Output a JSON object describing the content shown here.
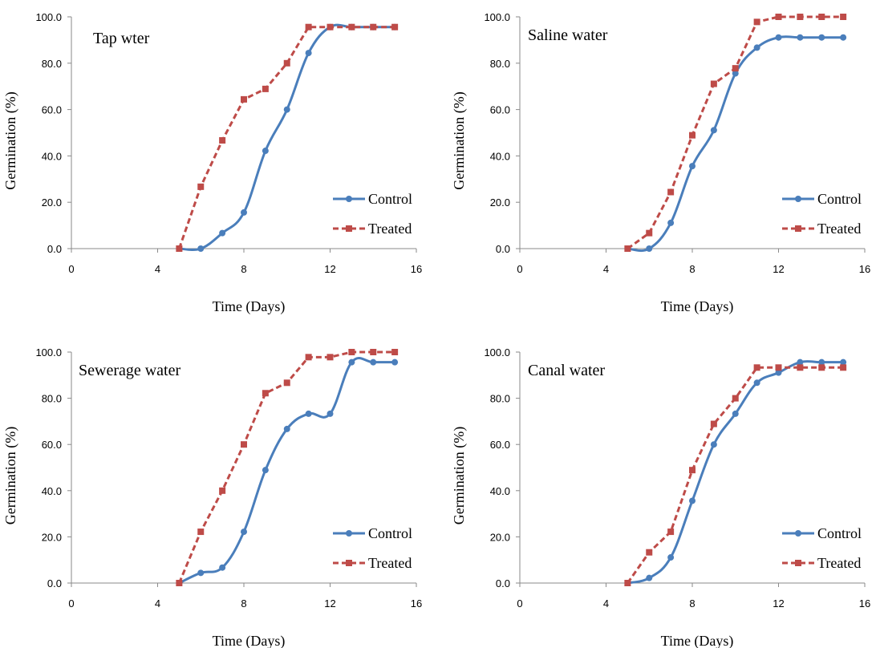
{
  "chart_data": [
    {
      "type": "line",
      "title": "Tap wter",
      "xlabel": "Time (Days)",
      "ylabel": "Germination (%)",
      "xlim": [
        0,
        16
      ],
      "ylim": [
        0,
        100
      ],
      "xticks": [
        "0",
        "4",
        "8",
        "12",
        "16"
      ],
      "yticks": [
        "0.0",
        "20.0",
        "40.0",
        "60.0",
        "80.0",
        "100.0"
      ],
      "legend_position": "bottom-right",
      "x": [
        5,
        6,
        7,
        8,
        9,
        10,
        11,
        12,
        13,
        14,
        15
      ],
      "series": [
        {
          "name": "Control",
          "color": "#4a7ebb",
          "style": "solid-smooth",
          "marker": "circle",
          "values": [
            0,
            0,
            6.7,
            15.6,
            42.2,
            60.0,
            84.4,
            95.6,
            95.6,
            95.6,
            95.6
          ]
        },
        {
          "name": "Treated",
          "color": "#be4b48",
          "style": "dashed",
          "marker": "square",
          "values": [
            0,
            26.7,
            46.7,
            64.4,
            68.9,
            80.0,
            95.6,
            95.6,
            95.6,
            95.6,
            95.6
          ]
        }
      ]
    },
    {
      "type": "line",
      "title": "Saline water",
      "xlabel": "Time (Days)",
      "ylabel": "Germination (%)",
      "xlim": [
        0,
        16
      ],
      "ylim": [
        0,
        100
      ],
      "xticks": [
        "0",
        "4",
        "8",
        "12",
        "16"
      ],
      "yticks": [
        "0.0",
        "20.0",
        "40.0",
        "60.0",
        "80.0",
        "100.0"
      ],
      "legend_position": "bottom-right",
      "x": [
        5,
        6,
        7,
        8,
        9,
        10,
        11,
        12,
        13,
        14,
        15
      ],
      "series": [
        {
          "name": "Control",
          "color": "#4a7ebb",
          "style": "solid-smooth",
          "marker": "circle",
          "values": [
            0,
            0,
            11.1,
            35.6,
            51.1,
            75.6,
            86.7,
            91.1,
            91.1,
            91.1,
            91.1
          ]
        },
        {
          "name": "Treated",
          "color": "#be4b48",
          "style": "dashed",
          "marker": "square",
          "values": [
            0,
            6.7,
            24.4,
            48.9,
            71.1,
            77.8,
            97.8,
            100.0,
            100.0,
            100.0,
            100.0
          ]
        }
      ]
    },
    {
      "type": "line",
      "title": "Sewerage water",
      "xlabel": "Time (Days)",
      "ylabel": "Germination (%)",
      "xlim": [
        0,
        16
      ],
      "ylim": [
        0,
        100
      ],
      "xticks": [
        "0",
        "4",
        "8",
        "12",
        "16"
      ],
      "yticks": [
        "0.0",
        "20.0",
        "40.0",
        "60.0",
        "80.0",
        "100.0"
      ],
      "legend_position": "bottom-right",
      "x": [
        5,
        6,
        7,
        8,
        9,
        10,
        11,
        12,
        13,
        14,
        15
      ],
      "series": [
        {
          "name": "Control",
          "color": "#4a7ebb",
          "style": "solid-smooth",
          "marker": "circle",
          "values": [
            0,
            4.4,
            6.7,
            22.2,
            48.9,
            66.7,
            73.3,
            73.3,
            95.6,
            95.6,
            95.6
          ]
        },
        {
          "name": "Treated",
          "color": "#be4b48",
          "style": "dashed",
          "marker": "square",
          "values": [
            0,
            22.2,
            40.0,
            60.0,
            82.2,
            86.7,
            97.8,
            97.8,
            100.0,
            100.0,
            100.0
          ]
        }
      ]
    },
    {
      "type": "line",
      "title": "Canal water",
      "xlabel": "Time (Days)",
      "ylabel": "Germination (%)",
      "xlim": [
        0,
        16
      ],
      "ylim": [
        0,
        100
      ],
      "xticks": [
        "0",
        "4",
        "8",
        "12",
        "16"
      ],
      "yticks": [
        "0.0",
        "20.0",
        "40.0",
        "60.0",
        "80.0",
        "100.0"
      ],
      "legend_position": "bottom-right",
      "x": [
        5,
        6,
        7,
        8,
        9,
        10,
        11,
        12,
        13,
        14,
        15
      ],
      "series": [
        {
          "name": "Control",
          "color": "#4a7ebb",
          "style": "solid-smooth",
          "marker": "circle",
          "values": [
            0,
            2.2,
            11.1,
            35.6,
            60.0,
            73.3,
            86.7,
            91.1,
            95.6,
            95.6,
            95.6
          ]
        },
        {
          "name": "Treated",
          "color": "#be4b48",
          "style": "dashed",
          "marker": "square",
          "values": [
            0,
            13.3,
            22.2,
            48.9,
            68.9,
            80.0,
            93.3,
            93.3,
            93.3,
            93.3,
            93.3
          ]
        }
      ]
    }
  ]
}
